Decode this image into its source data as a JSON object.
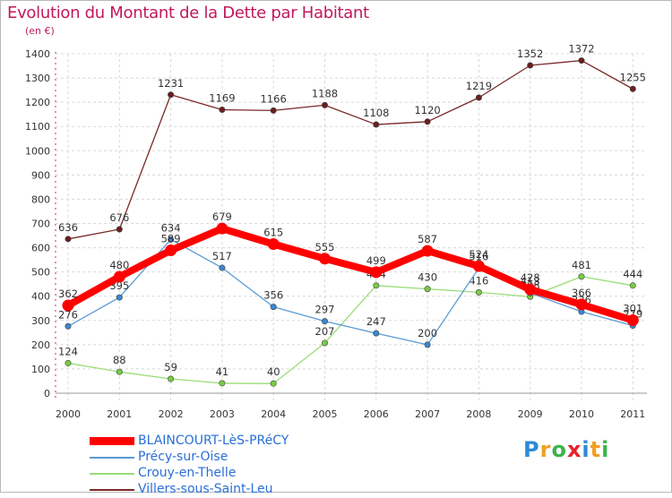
{
  "header": {
    "title": "Evolution du Montant de la Dette par Habitant",
    "subtitle": "(en €)"
  },
  "legend": [
    {
      "name": "BLAINCOURT-LèS-PRéCY",
      "color": "#ff0000"
    },
    {
      "name": "Précy-sur-Oise",
      "color": "#5b9bd5"
    },
    {
      "name": "Crouy-en-Thelle",
      "color": "#99dd77"
    },
    {
      "name": "Villers-sous-Saint-Leu",
      "color": "#7a2828"
    }
  ],
  "logo": {
    "letters": [
      "P",
      "r",
      "o",
      "x",
      "i",
      "t",
      "i"
    ]
  },
  "chart_data": {
    "type": "line",
    "title": "Evolution du Montant de la Dette par Habitant",
    "ylabel": "(en €)",
    "xlabel": "",
    "ylim": [
      0,
      1400
    ],
    "yticks": [
      0,
      100,
      200,
      300,
      400,
      500,
      600,
      700,
      800,
      900,
      1000,
      1100,
      1200,
      1300,
      1400
    ],
    "grid": true,
    "categories": [
      "2000",
      "2001",
      "2002",
      "2003",
      "2004",
      "2005",
      "2006",
      "2007",
      "2008",
      "2009",
      "2010",
      "2011"
    ],
    "series": [
      {
        "name": "Villers-sous-Saint-Leu",
        "color": "#7a2828",
        "marker": "#6b1e1e",
        "width": 1.3,
        "values": [
          636,
          676,
          1231,
          1169,
          1166,
          1188,
          1108,
          1120,
          1219,
          1352,
          1372,
          1255
        ]
      },
      {
        "name": "Crouy-en-Thelle",
        "color": "#99dd77",
        "marker": "#77cc44",
        "width": 1.3,
        "values": [
          124,
          88,
          59,
          41,
          40,
          207,
          444,
          430,
          416,
          398,
          481,
          444
        ]
      },
      {
        "name": "Précy-sur-Oise",
        "color": "#5b9bd5",
        "marker": "#3a87d0",
        "width": 1.3,
        "values": [
          276,
          395,
          634,
          517,
          356,
          297,
          247,
          200,
          516,
          413,
          336,
          279
        ]
      },
      {
        "name": "BLAINCOURT-LèS-PRéCY",
        "color": "#ff0000",
        "marker": "#ff0000",
        "width": 8,
        "values": [
          362,
          480,
          589,
          679,
          615,
          555,
          499,
          587,
          524,
          428,
          366,
          301
        ]
      }
    ]
  }
}
